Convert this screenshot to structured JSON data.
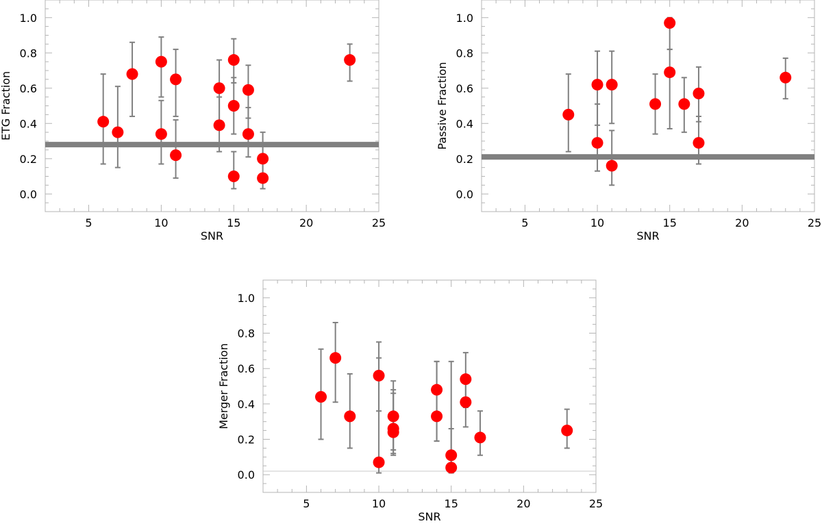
{
  "chart_data": [
    {
      "type": "scatter",
      "panel": "top-left",
      "xlabel": "SNR",
      "ylabel": "ETG Fraction",
      "xlim": [
        2,
        25
      ],
      "ylim": [
        -0.1,
        1.1
      ],
      "xticks": [
        5,
        10,
        15,
        20,
        25
      ],
      "yticks": [
        "0.0",
        "0.2",
        "0.4",
        "0.6",
        "0.8",
        "1.0"
      ],
      "reference_line": 0.28,
      "points": [
        {
          "x": 6,
          "y": 0.41,
          "lo": 0.17,
          "hi": 0.68
        },
        {
          "x": 7,
          "y": 0.35,
          "lo": 0.15,
          "hi": 0.61
        },
        {
          "x": 8,
          "y": 0.68,
          "lo": 0.44,
          "hi": 0.86
        },
        {
          "x": 10,
          "y": 0.75,
          "lo": 0.55,
          "hi": 0.89
        },
        {
          "x": 10,
          "y": 0.34,
          "lo": 0.17,
          "hi": 0.53
        },
        {
          "x": 11,
          "y": 0.65,
          "lo": 0.44,
          "hi": 0.82
        },
        {
          "x": 11,
          "y": 0.22,
          "lo": 0.09,
          "hi": 0.42
        },
        {
          "x": 14,
          "y": 0.6,
          "lo": 0.38,
          "hi": 0.76
        },
        {
          "x": 14,
          "y": 0.39,
          "lo": 0.24,
          "hi": 0.55
        },
        {
          "x": 15,
          "y": 0.76,
          "lo": 0.63,
          "hi": 0.88
        },
        {
          "x": 15,
          "y": 0.5,
          "lo": 0.34,
          "hi": 0.66
        },
        {
          "x": 15,
          "y": 0.1,
          "lo": 0.03,
          "hi": 0.24
        },
        {
          "x": 16,
          "y": 0.59,
          "lo": 0.43,
          "hi": 0.73
        },
        {
          "x": 16,
          "y": 0.34,
          "lo": 0.21,
          "hi": 0.49
        },
        {
          "x": 17,
          "y": 0.2,
          "lo": 0.1,
          "hi": 0.35
        },
        {
          "x": 17,
          "y": 0.09,
          "lo": 0.03,
          "hi": 0.2
        },
        {
          "x": 23,
          "y": 0.76,
          "lo": 0.64,
          "hi": 0.85
        }
      ]
    },
    {
      "type": "scatter",
      "panel": "top-right",
      "xlabel": "SNR",
      "ylabel": "Passive Fraction",
      "xlim": [
        2,
        25
      ],
      "ylim": [
        -0.1,
        1.1
      ],
      "xticks": [
        5,
        10,
        15,
        20,
        25
      ],
      "yticks": [
        "0.0",
        "0.2",
        "0.4",
        "0.6",
        "0.8",
        "1.0"
      ],
      "reference_line": 0.21,
      "points": [
        {
          "x": 8,
          "y": 0.45,
          "lo": 0.24,
          "hi": 0.68
        },
        {
          "x": 10,
          "y": 0.62,
          "lo": 0.39,
          "hi": 0.81
        },
        {
          "x": 10,
          "y": 0.29,
          "lo": 0.13,
          "hi": 0.51
        },
        {
          "x": 11,
          "y": 0.62,
          "lo": 0.4,
          "hi": 0.81
        },
        {
          "x": 11,
          "y": 0.16,
          "lo": 0.05,
          "hi": 0.36
        },
        {
          "x": 14,
          "y": 0.51,
          "lo": 0.34,
          "hi": 0.68
        },
        {
          "x": 15,
          "y": 0.97,
          "lo": 0.82,
          "hi": 1.0
        },
        {
          "x": 15,
          "y": 0.69,
          "lo": 0.37,
          "hi": 0.82
        },
        {
          "x": 16,
          "y": 0.51,
          "lo": 0.35,
          "hi": 0.66
        },
        {
          "x": 17,
          "y": 0.57,
          "lo": 0.41,
          "hi": 0.72
        },
        {
          "x": 17,
          "y": 0.29,
          "lo": 0.17,
          "hi": 0.44
        },
        {
          "x": 23,
          "y": 0.66,
          "lo": 0.54,
          "hi": 0.77
        }
      ]
    },
    {
      "type": "scatter",
      "panel": "bottom-center",
      "xlabel": "SNR",
      "ylabel": "Merger Fraction",
      "xlim": [
        2,
        25
      ],
      "ylim": [
        -0.1,
        1.1
      ],
      "xticks": [
        5,
        10,
        15,
        20,
        25
      ],
      "yticks": [
        "0.0",
        "0.2",
        "0.4",
        "0.6",
        "0.8",
        "1.0"
      ],
      "reference_line": 0.02,
      "points": [
        {
          "x": 6,
          "y": 0.44,
          "lo": 0.2,
          "hi": 0.71
        },
        {
          "x": 7,
          "y": 0.66,
          "lo": 0.41,
          "hi": 0.86
        },
        {
          "x": 8,
          "y": 0.33,
          "lo": 0.15,
          "hi": 0.57
        },
        {
          "x": 10,
          "y": 0.56,
          "lo": 0.36,
          "hi": 0.75
        },
        {
          "x": 10,
          "y": 0.07,
          "lo": 0.01,
          "hi": 0.66
        },
        {
          "x": 11,
          "y": 0.33,
          "lo": 0.14,
          "hi": 0.53
        },
        {
          "x": 11,
          "y": 0.26,
          "lo": 0.11,
          "hi": 0.48
        },
        {
          "x": 11,
          "y": 0.24,
          "lo": 0.12,
          "hi": 0.46
        },
        {
          "x": 14,
          "y": 0.48,
          "lo": 0.19,
          "hi": 0.64
        },
        {
          "x": 14,
          "y": 0.33,
          "lo": 0.19,
          "hi": 0.64
        },
        {
          "x": 15,
          "y": 0.11,
          "lo": 0.04,
          "hi": 0.64
        },
        {
          "x": 15,
          "y": 0.04,
          "lo": 0.01,
          "hi": 0.26
        },
        {
          "x": 16,
          "y": 0.54,
          "lo": 0.38,
          "hi": 0.69
        },
        {
          "x": 16,
          "y": 0.41,
          "lo": 0.27,
          "hi": 0.55
        },
        {
          "x": 17,
          "y": 0.21,
          "lo": 0.11,
          "hi": 0.36
        },
        {
          "x": 23,
          "y": 0.25,
          "lo": 0.15,
          "hi": 0.37
        }
      ]
    }
  ],
  "colors": {
    "marker": "#ff0000",
    "errorbar": "#808080",
    "reference_line": "#808080",
    "frame": "#b4b4b4"
  }
}
